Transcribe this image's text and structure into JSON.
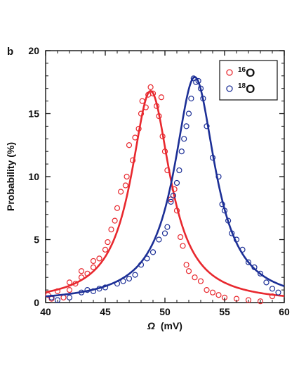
{
  "panel_label": "b",
  "chart_data": {
    "type": "scatter",
    "xlabel_symbol": "Ω",
    "xlabel_unit": "(mV)",
    "ylabel": "Probability (%)",
    "xlim": [
      40,
      60
    ],
    "ylim": [
      0,
      20
    ],
    "xticks": [
      40,
      45,
      50,
      55,
      60
    ],
    "yticks": [
      0,
      5,
      10,
      15,
      20
    ],
    "grid": false,
    "legend_position": "top-right",
    "series": [
      {
        "name": "16O",
        "legend_mass": "16",
        "legend_element": "O",
        "color": "#e8282e",
        "marker": "open-circle",
        "points": [
          [
            40.2,
            0.6
          ],
          [
            40.5,
            0.3
          ],
          [
            41.0,
            0.9
          ],
          [
            41.5,
            0.4
          ],
          [
            42.0,
            1.0
          ],
          [
            42.0,
            1.6
          ],
          [
            42.5,
            1.5
          ],
          [
            43.0,
            2.0
          ],
          [
            43.0,
            2.5
          ],
          [
            43.5,
            2.3
          ],
          [
            44.0,
            2.8
          ],
          [
            44.0,
            3.3
          ],
          [
            44.5,
            3.5
          ],
          [
            45.0,
            4.2
          ],
          [
            45.2,
            4.8
          ],
          [
            45.5,
            5.8
          ],
          [
            45.8,
            6.5
          ],
          [
            46.0,
            7.5
          ],
          [
            46.3,
            8.8
          ],
          [
            46.7,
            9.3
          ],
          [
            46.8,
            10.0
          ],
          [
            47.0,
            12.5
          ],
          [
            47.3,
            11.3
          ],
          [
            47.5,
            13.1
          ],
          [
            47.8,
            13.8
          ],
          [
            48.0,
            15.0
          ],
          [
            48.1,
            16.0
          ],
          [
            48.4,
            15.5
          ],
          [
            48.6,
            16.5
          ],
          [
            48.8,
            17.1
          ],
          [
            49.0,
            16.6
          ],
          [
            49.3,
            15.6
          ],
          [
            49.5,
            14.8
          ],
          [
            49.7,
            16.3
          ],
          [
            49.8,
            13.2
          ],
          [
            50.0,
            12.0
          ],
          [
            50.2,
            10.5
          ],
          [
            50.5,
            8.2
          ],
          [
            50.8,
            9.0
          ],
          [
            51.0,
            7.3
          ],
          [
            51.3,
            5.2
          ],
          [
            51.5,
            4.5
          ],
          [
            51.8,
            3.0
          ],
          [
            52.0,
            2.5
          ],
          [
            52.5,
            2.0
          ],
          [
            53.0,
            1.7
          ],
          [
            53.5,
            1.0
          ],
          [
            54.0,
            0.8
          ],
          [
            54.5,
            0.6
          ],
          [
            55.0,
            0.4
          ],
          [
            56.0,
            0.3
          ],
          [
            57.0,
            0.2
          ],
          [
            58.0,
            0.1
          ],
          [
            59.0,
            0.5
          ]
        ],
        "fit_center": 48.8,
        "fit_peak": 16.8,
        "fit_halfwidth": 2.0
      },
      {
        "name": "18O",
        "legend_mass": "18",
        "legend_element": "O",
        "color": "#1c2f96",
        "marker": "open-circle",
        "points": [
          [
            40.5,
            0.4
          ],
          [
            41.0,
            0.2
          ],
          [
            42.0,
            0.4
          ],
          [
            43.0,
            0.8
          ],
          [
            43.5,
            1.0
          ],
          [
            44.0,
            0.9
          ],
          [
            44.5,
            1.1
          ],
          [
            45.0,
            1.2
          ],
          [
            46.0,
            1.5
          ],
          [
            46.5,
            1.7
          ],
          [
            47.0,
            1.9
          ],
          [
            47.5,
            2.2
          ],
          [
            48.0,
            3.0
          ],
          [
            48.5,
            3.5
          ],
          [
            49.0,
            4.0
          ],
          [
            49.5,
            5.0
          ],
          [
            50.0,
            5.5
          ],
          [
            50.2,
            6.0
          ],
          [
            50.5,
            8.0
          ],
          [
            50.7,
            8.5
          ],
          [
            51.0,
            9.5
          ],
          [
            51.2,
            10.5
          ],
          [
            51.4,
            12.0
          ],
          [
            51.6,
            13.0
          ],
          [
            51.8,
            14.0
          ],
          [
            52.0,
            15.0
          ],
          [
            52.2,
            16.2
          ],
          [
            52.4,
            17.8
          ],
          [
            52.6,
            17.5
          ],
          [
            52.8,
            17.6
          ],
          [
            53.0,
            17.0
          ],
          [
            53.2,
            16.2
          ],
          [
            53.5,
            14.0
          ],
          [
            54.0,
            11.5
          ],
          [
            54.5,
            10.0
          ],
          [
            54.8,
            7.8
          ],
          [
            55.0,
            7.3
          ],
          [
            55.3,
            6.5
          ],
          [
            55.6,
            5.5
          ],
          [
            56.0,
            5.0
          ],
          [
            56.5,
            4.2
          ],
          [
            57.0,
            3.2
          ],
          [
            57.5,
            2.8
          ],
          [
            58.0,
            2.3
          ],
          [
            58.5,
            1.6
          ],
          [
            59.0,
            1.1
          ],
          [
            59.5,
            0.8
          ]
        ],
        "fit_center": 52.5,
        "fit_peak": 17.9,
        "fit_halfwidth": 2.1
      }
    ]
  }
}
